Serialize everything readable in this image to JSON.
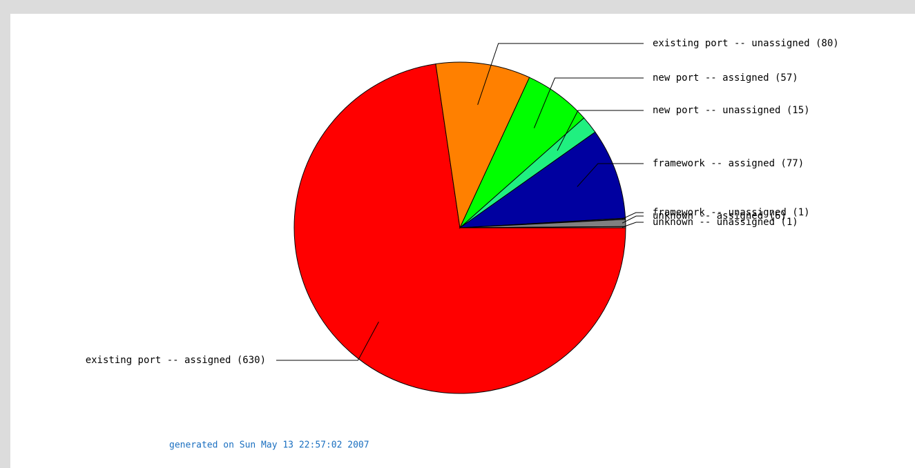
{
  "chart_data": {
    "type": "pie",
    "labels": [
      "existing port -- assigned (630)",
      "existing port -- unassigned (80)",
      "new port -- assigned (57)",
      "new port -- unassigned (15)",
      "framework -- assigned (77)",
      "framework -- unassigned (1)",
      "unknown -- assigned (6)",
      "unknown -- unassigned (1)"
    ],
    "values": [
      630,
      80,
      57,
      15,
      77,
      1,
      6,
      1
    ],
    "colors": [
      "#ff0000",
      "#ff8000",
      "#00ff00",
      "#20f080",
      "#0000a0",
      "#404040",
      "#808080",
      "#a0a0a0"
    ],
    "footer": "generated on Sun May 13 22:57:02 2007"
  }
}
